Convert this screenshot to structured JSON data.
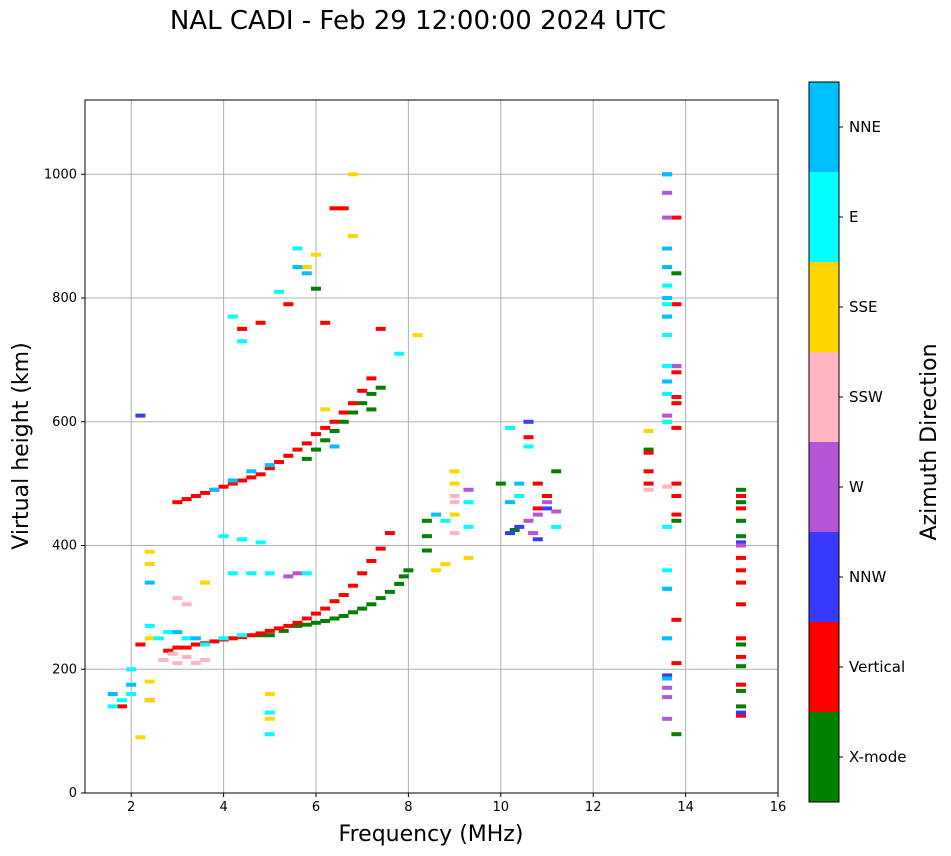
{
  "chart_data": {
    "type": "scatter",
    "title": "NAL CADI - Feb 29 12:00:00 2024 UTC",
    "xlabel": "Frequency (MHz)",
    "ylabel": "Virtual height (km)",
    "xlim": [
      1,
      16
    ],
    "ylim": [
      0,
      1120
    ],
    "xticks": [
      2,
      4,
      6,
      8,
      10,
      12,
      14,
      16
    ],
    "yticks": [
      0,
      200,
      400,
      600,
      800,
      1000
    ],
    "grid": true,
    "colorbar": {
      "label": "Azimuth Direction",
      "categories": [
        {
          "name": "X-mode",
          "color": "#008000"
        },
        {
          "name": "Vertical",
          "color": "#ff0000"
        },
        {
          "name": "NNW",
          "color": "#3a3aff"
        },
        {
          "name": "W",
          "color": "#b455d6"
        },
        {
          "name": "SSW",
          "color": "#ffb6c1"
        },
        {
          "name": "SSE",
          "color": "#ffd700"
        },
        {
          "name": "E",
          "color": "#00ffff"
        },
        {
          "name": "NNE",
          "color": "#00bfff"
        }
      ]
    },
    "series": [
      {
        "name": "X-mode",
        "points": [
          [
            5.6,
            270
          ],
          [
            5.8,
            272
          ],
          [
            6.0,
            275
          ],
          [
            6.2,
            278
          ],
          [
            6.4,
            282
          ],
          [
            6.6,
            286
          ],
          [
            6.8,
            292
          ],
          [
            7.0,
            298
          ],
          [
            7.2,
            305
          ],
          [
            7.4,
            315
          ],
          [
            7.6,
            325
          ],
          [
            7.8,
            338
          ],
          [
            7.9,
            350
          ],
          [
            8.0,
            360
          ],
          [
            8.4,
            392
          ],
          [
            8.4,
            415
          ],
          [
            8.4,
            440
          ],
          [
            10.0,
            500
          ],
          [
            10.3,
            425
          ],
          [
            11.2,
            520
          ],
          [
            13.2,
            555
          ],
          [
            13.8,
            95
          ],
          [
            13.8,
            440
          ],
          [
            13.8,
            840
          ],
          [
            15.2,
            490
          ],
          [
            15.2,
            470
          ],
          [
            15.2,
            440
          ],
          [
            15.2,
            415
          ],
          [
            15.2,
            240
          ],
          [
            15.2,
            205
          ],
          [
            15.2,
            165
          ],
          [
            15.2,
            140
          ],
          [
            5.8,
            540
          ],
          [
            6.0,
            555
          ],
          [
            6.2,
            570
          ],
          [
            6.4,
            585
          ],
          [
            6.6,
            600
          ],
          [
            6.8,
            615
          ],
          [
            7.0,
            630
          ],
          [
            7.2,
            645
          ],
          [
            7.4,
            655
          ],
          [
            6.0,
            815
          ],
          [
            5.0,
            255
          ],
          [
            5.3,
            262
          ],
          [
            4.8,
            255
          ],
          [
            7.2,
            620
          ]
        ]
      },
      {
        "name": "Vertical",
        "points": [
          [
            2.8,
            230
          ],
          [
            3.0,
            235
          ],
          [
            3.2,
            235
          ],
          [
            3.4,
            240
          ],
          [
            3.6,
            242
          ],
          [
            3.8,
            245
          ],
          [
            4.0,
            248
          ],
          [
            4.2,
            250
          ],
          [
            4.4,
            252
          ],
          [
            4.6,
            255
          ],
          [
            4.8,
            258
          ],
          [
            5.0,
            262
          ],
          [
            5.2,
            266
          ],
          [
            5.4,
            270
          ],
          [
            5.6,
            275
          ],
          [
            5.8,
            282
          ],
          [
            6.0,
            290
          ],
          [
            6.2,
            298
          ],
          [
            6.4,
            310
          ],
          [
            6.6,
            320
          ],
          [
            6.8,
            335
          ],
          [
            7.0,
            355
          ],
          [
            7.2,
            375
          ],
          [
            7.4,
            395
          ],
          [
            7.6,
            420
          ],
          [
            3.0,
            470
          ],
          [
            3.2,
            475
          ],
          [
            3.4,
            480
          ],
          [
            3.6,
            485
          ],
          [
            3.8,
            490
          ],
          [
            4.0,
            495
          ],
          [
            4.2,
            500
          ],
          [
            4.4,
            505
          ],
          [
            4.6,
            510
          ],
          [
            4.8,
            515
          ],
          [
            5.0,
            525
          ],
          [
            5.2,
            535
          ],
          [
            5.4,
            545
          ],
          [
            5.6,
            555
          ],
          [
            5.8,
            565
          ],
          [
            6.0,
            580
          ],
          [
            6.2,
            590
          ],
          [
            6.4,
            600
          ],
          [
            6.6,
            615
          ],
          [
            6.8,
            630
          ],
          [
            7.0,
            650
          ],
          [
            7.2,
            670
          ],
          [
            7.4,
            750
          ],
          [
            6.4,
            945
          ],
          [
            6.6,
            945
          ],
          [
            4.4,
            750
          ],
          [
            4.8,
            760
          ],
          [
            5.4,
            790
          ],
          [
            6.2,
            760
          ],
          [
            10.6,
            575
          ],
          [
            10.8,
            500
          ],
          [
            10.8,
            460
          ],
          [
            11.0,
            480
          ],
          [
            13.2,
            550
          ],
          [
            13.2,
            520
          ],
          [
            13.2,
            500
          ],
          [
            13.8,
            690
          ],
          [
            13.8,
            680
          ],
          [
            13.8,
            640
          ],
          [
            13.8,
            630
          ],
          [
            13.8,
            590
          ],
          [
            13.8,
            500
          ],
          [
            13.8,
            480
          ],
          [
            13.8,
            450
          ],
          [
            13.8,
            280
          ],
          [
            13.8,
            210
          ],
          [
            13.8,
            930
          ],
          [
            13.8,
            790
          ],
          [
            15.2,
            480
          ],
          [
            15.2,
            460
          ],
          [
            15.2,
            380
          ],
          [
            15.2,
            360
          ],
          [
            15.2,
            340
          ],
          [
            15.2,
            305
          ],
          [
            15.2,
            250
          ],
          [
            15.2,
            220
          ],
          [
            15.2,
            175
          ],
          [
            15.2,
            125
          ],
          [
            2.2,
            240
          ],
          [
            1.8,
            140
          ]
        ]
      },
      {
        "name": "NNW",
        "points": [
          [
            10.2,
            420
          ],
          [
            10.4,
            430
          ],
          [
            10.6,
            600
          ],
          [
            10.8,
            410
          ],
          [
            11.0,
            460
          ],
          [
            13.6,
            190
          ],
          [
            15.2,
            405
          ],
          [
            15.2,
            130
          ],
          [
            2.2,
            610
          ]
        ]
      },
      {
        "name": "W",
        "points": [
          [
            5.4,
            350
          ],
          [
            5.6,
            355
          ],
          [
            9.3,
            490
          ],
          [
            10.6,
            440
          ],
          [
            10.7,
            420
          ],
          [
            10.8,
            450
          ],
          [
            11.0,
            470
          ],
          [
            11.2,
            455
          ],
          [
            13.6,
            1000
          ],
          [
            13.6,
            970
          ],
          [
            13.6,
            930
          ],
          [
            13.6,
            610
          ],
          [
            13.6,
            170
          ],
          [
            13.6,
            155
          ],
          [
            13.6,
            120
          ],
          [
            13.8,
            690
          ],
          [
            15.2,
            400
          ],
          [
            2.4,
            150
          ]
        ]
      },
      {
        "name": "SSW",
        "points": [
          [
            2.7,
            215
          ],
          [
            2.9,
            225
          ],
          [
            3.0,
            210
          ],
          [
            3.2,
            220
          ],
          [
            3.4,
            210
          ],
          [
            3.6,
            215
          ],
          [
            3.0,
            315
          ],
          [
            3.2,
            305
          ],
          [
            9.0,
            480
          ],
          [
            9.0,
            420
          ],
          [
            9.0,
            470
          ],
          [
            13.2,
            490
          ],
          [
            13.6,
            495
          ]
        ]
      },
      {
        "name": "SSE",
        "points": [
          [
            2.4,
            390
          ],
          [
            2.4,
            370
          ],
          [
            2.4,
            250
          ],
          [
            2.4,
            180
          ],
          [
            2.4,
            150
          ],
          [
            2.2,
            90
          ],
          [
            5.0,
            160
          ],
          [
            5.0,
            120
          ],
          [
            6.8,
            1000
          ],
          [
            6.8,
            900
          ],
          [
            6.0,
            870
          ],
          [
            5.8,
            850
          ],
          [
            6.2,
            620
          ],
          [
            8.6,
            360
          ],
          [
            8.8,
            370
          ],
          [
            9.0,
            520
          ],
          [
            9.0,
            500
          ],
          [
            9.0,
            450
          ],
          [
            9.3,
            380
          ],
          [
            13.2,
            585
          ],
          [
            13.6,
            600
          ],
          [
            8.2,
            740
          ],
          [
            3.6,
            340
          ]
        ]
      },
      {
        "name": "E",
        "points": [
          [
            1.6,
            140
          ],
          [
            1.8,
            150
          ],
          [
            2.0,
            160
          ],
          [
            2.0,
            200
          ],
          [
            2.4,
            270
          ],
          [
            2.6,
            250
          ],
          [
            2.8,
            260
          ],
          [
            3.2,
            250
          ],
          [
            3.6,
            240
          ],
          [
            4.0,
            250
          ],
          [
            4.4,
            255
          ],
          [
            5.0,
            95
          ],
          [
            5.0,
            130
          ],
          [
            4.0,
            415
          ],
          [
            4.4,
            410
          ],
          [
            4.8,
            405
          ],
          [
            4.2,
            355
          ],
          [
            4.6,
            355
          ],
          [
            5.0,
            355
          ],
          [
            5.8,
            355
          ],
          [
            8.8,
            440
          ],
          [
            9.3,
            470
          ],
          [
            9.3,
            430
          ],
          [
            10.2,
            590
          ],
          [
            10.4,
            480
          ],
          [
            10.6,
            560
          ],
          [
            11.2,
            430
          ],
          [
            13.6,
            820
          ],
          [
            13.6,
            790
          ],
          [
            13.6,
            770
          ],
          [
            13.6,
            740
          ],
          [
            13.6,
            690
          ],
          [
            13.6,
            645
          ],
          [
            13.6,
            600
          ],
          [
            13.6,
            430
          ],
          [
            13.6,
            360
          ],
          [
            13.6,
            330
          ],
          [
            13.6,
            250
          ],
          [
            4.2,
            770
          ],
          [
            4.4,
            730
          ],
          [
            5.2,
            810
          ],
          [
            5.6,
            880
          ],
          [
            7.8,
            710
          ]
        ]
      },
      {
        "name": "NNE",
        "points": [
          [
            1.6,
            160
          ],
          [
            2.0,
            175
          ],
          [
            2.4,
            340
          ],
          [
            3.0,
            260
          ],
          [
            3.4,
            250
          ],
          [
            3.8,
            490
          ],
          [
            4.2,
            505
          ],
          [
            4.6,
            520
          ],
          [
            5.0,
            530
          ],
          [
            5.6,
            850
          ],
          [
            5.8,
            840
          ],
          [
            6.4,
            560
          ],
          [
            8.6,
            450
          ],
          [
            10.2,
            470
          ],
          [
            10.4,
            500
          ],
          [
            13.6,
            1000
          ],
          [
            13.6,
            880
          ],
          [
            13.6,
            850
          ],
          [
            13.6,
            800
          ],
          [
            13.6,
            770
          ],
          [
            13.6,
            665
          ],
          [
            13.6,
            330
          ],
          [
            13.6,
            250
          ],
          [
            13.6,
            185
          ]
        ]
      }
    ]
  }
}
